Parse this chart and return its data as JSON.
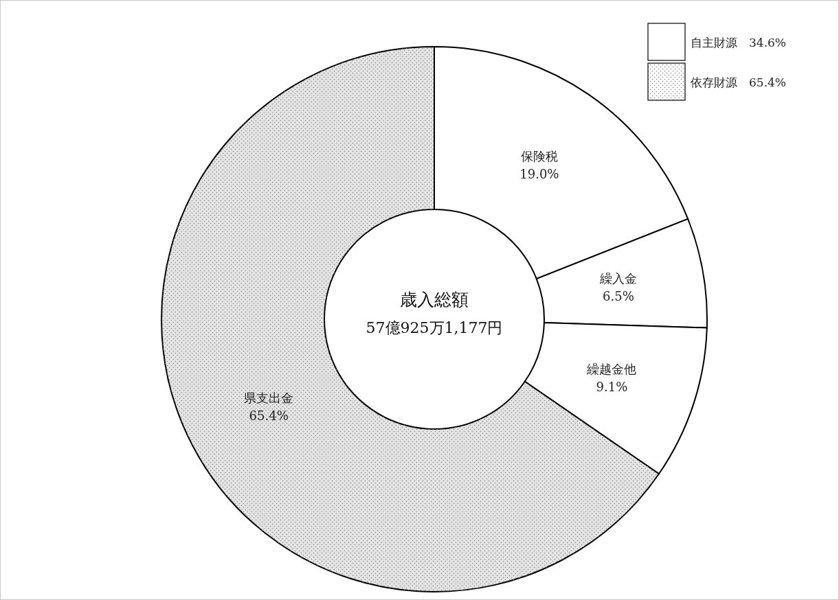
{
  "chart_data": {
    "type": "donut",
    "categories": [
      "保険税",
      "繰入金",
      "繰越金他",
      "県支出金"
    ],
    "values": [
      19.0,
      6.5,
      9.1,
      65.4
    ],
    "colors": [
      "#ffffff",
      "#ffffff",
      "#ffffff",
      "#e4e4e4"
    ],
    "value_labels": [
      "19.0%",
      "6.5%",
      "9.1%",
      "65.4%"
    ],
    "annotations": [
      "自主財源　34.6%",
      "依存財源　65.4%",
      "歳入総額",
      "57億925万1,177円"
    ]
  }
}
